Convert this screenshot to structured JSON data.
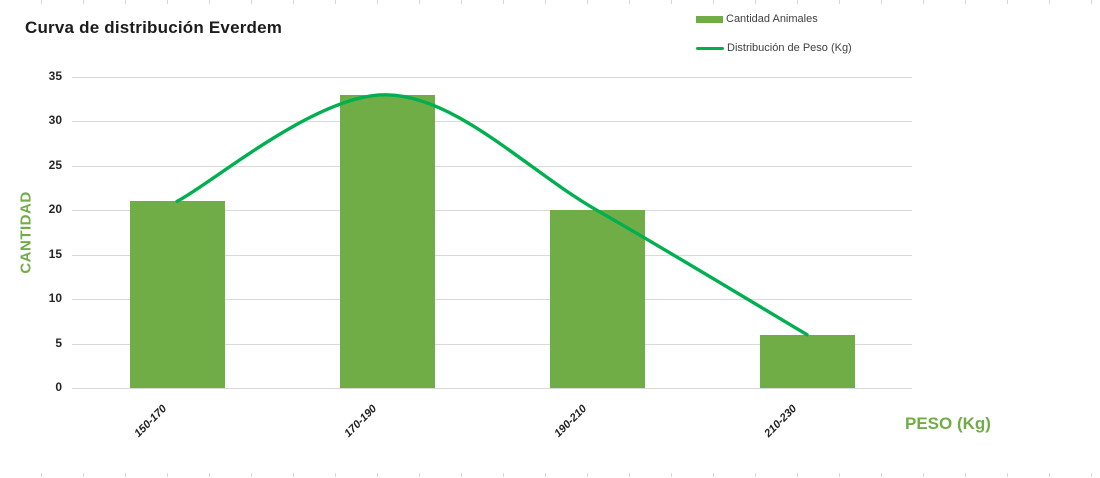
{
  "title": "Curva de distribución Everdem",
  "legend": {
    "items": [
      {
        "label": "Cantidad Animales",
        "swatch": "bar-swatch",
        "color": "#70AD47"
      },
      {
        "label": "Distribución de Peso (Kg)",
        "swatch": "line-swatch",
        "color": "#00B050"
      }
    ]
  },
  "axes": {
    "y_title": "CANTIDAD",
    "x_title": "PESO (Kg)",
    "y_tick_labels": [
      "35",
      "30",
      "25",
      "20",
      "15",
      "10",
      "5",
      "0"
    ]
  },
  "chart_data": {
    "type": "bar",
    "title": "Curva de distribución Everdem",
    "categories": [
      "150-170",
      "170-190",
      "190-210",
      "210-230"
    ],
    "series": [
      {
        "name": "Cantidad Animales",
        "type": "bar",
        "values": [
          21,
          33,
          20,
          6
        ],
        "color": "#70AD47"
      },
      {
        "name": "Distribución de Peso (Kg)",
        "type": "line",
        "values": [
          21,
          33,
          20,
          6
        ],
        "color": "#00B050",
        "smooth": true
      }
    ],
    "xlabel": "PESO (Kg)",
    "ylabel": "CANTIDAD",
    "ylim": [
      0,
      35
    ],
    "ytick_step": 5,
    "grid": true,
    "gridline_color": "#d9d9d9",
    "legend_position": "top-right"
  }
}
